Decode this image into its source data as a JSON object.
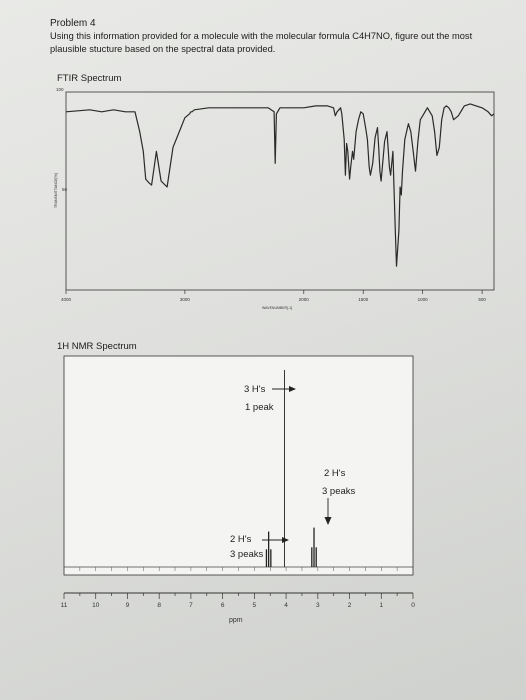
{
  "problem": {
    "title": "Problem 4",
    "statement": "Using this information provided for a molecule with the molecular formula C4H7NO, figure out the most plausible stucture based on the spectral data provided."
  },
  "ftir": {
    "title": "FTIR Spectrum",
    "y_top_label": "100",
    "y_mid_label": "50",
    "y_axis_label": "TRANSMITTANCE[%]",
    "x_axis_label": "WAVENUMBER[-1]",
    "x_ticks": [
      "4000",
      "3000",
      "2000",
      "1500",
      "1000",
      "500"
    ]
  },
  "nmr": {
    "title": "1H NMR Spectrum",
    "x_axis_label": "ppm",
    "x_ticks": [
      "11",
      "10",
      "9",
      "8",
      "7",
      "6",
      "5",
      "4",
      "3",
      "2",
      "1",
      "0"
    ],
    "annotations": {
      "a1_line1": "3 H's",
      "a1_line2": "1 peak",
      "a2_line1": "2 H's",
      "a2_line2": "3 peaks",
      "a3_line1": "2 H's",
      "a3_line2": "3 peaks"
    }
  },
  "chart_data": [
    {
      "type": "line",
      "title": "FTIR Spectrum",
      "xlabel": "WAVENUMBER[-1]",
      "ylabel": "TRANSMITTANCE[%]",
      "x_direction": "decreasing",
      "xlim": [
        4000,
        400
      ],
      "ylim": [
        0,
        100
      ],
      "series": [
        {
          "x": [
            4000,
            3800,
            3700,
            3600,
            3500,
            3420,
            3380,
            3350,
            3330,
            3300,
            3280,
            3240,
            3200,
            3150,
            3100,
            3000,
            2960,
            2950,
            2940,
            2920,
            2800,
            2600,
            2400,
            2300,
            2250,
            2240,
            2230,
            2200,
            2100,
            2000,
            1900,
            1800,
            1750,
            1735,
            1720,
            1690,
            1680,
            1660,
            1650,
            1640,
            1630,
            1615,
            1605,
            1590,
            1580,
            1560,
            1540,
            1520,
            1500,
            1480,
            1465,
            1450,
            1440,
            1420,
            1400,
            1380,
            1370,
            1360,
            1350,
            1320,
            1300,
            1280,
            1270,
            1250,
            1230,
            1220,
            1200,
            1190,
            1180,
            1170,
            1150,
            1120,
            1100,
            1080,
            1060,
            1040,
            1020,
            1000,
            980,
            960,
            940,
            920,
            900,
            880,
            860,
            840,
            820,
            800,
            780,
            760,
            740,
            700,
            650,
            600,
            550,
            500,
            450,
            420,
            400
          ],
          "y": [
            90,
            91,
            90,
            91,
            90,
            90,
            80,
            70,
            56,
            54,
            53,
            70,
            55,
            52,
            72,
            87,
            89,
            90,
            90,
            91,
            92,
            92,
            92,
            92,
            90,
            64,
            89,
            92,
            92,
            92,
            93,
            93,
            92,
            88,
            90,
            92,
            89,
            76,
            58,
            74,
            70,
            56,
            62,
            70,
            66,
            80,
            86,
            90,
            89,
            82,
            76,
            62,
            58,
            64,
            77,
            82,
            72,
            60,
            55,
            75,
            80,
            62,
            58,
            70,
            30,
            12,
            30,
            52,
            48,
            60,
            76,
            84,
            80,
            70,
            60,
            75,
            86,
            88,
            90,
            92,
            90,
            88,
            80,
            68,
            72,
            86,
            92,
            93,
            92,
            90,
            86,
            88,
            93,
            94,
            93,
            92,
            90,
            88,
            89
          ]
        }
      ]
    },
    {
      "type": "line",
      "title": "1H NMR Spectrum",
      "xlabel": "ppm",
      "x_direction": "decreasing",
      "xlim": [
        11,
        0
      ],
      "peaks": [
        {
          "ppm": 4.55,
          "height": 0.18,
          "multiplicity": 3,
          "integration": 2
        },
        {
          "ppm": 4.05,
          "height": 1.0,
          "multiplicity": 1,
          "integration": 3
        },
        {
          "ppm": 3.12,
          "height": 0.2,
          "multiplicity": 3,
          "integration": 2
        }
      ]
    }
  ]
}
